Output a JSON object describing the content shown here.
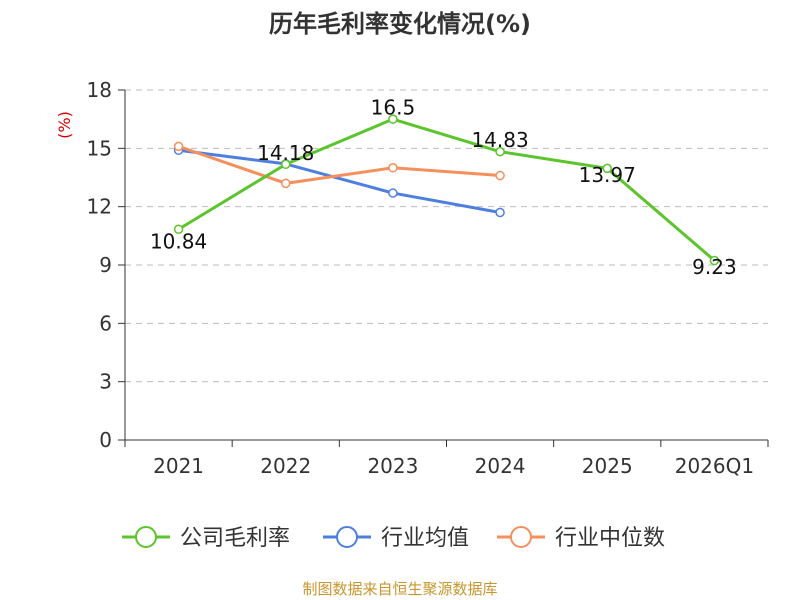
{
  "chart_data": {
    "type": "line",
    "title": "历年毛利率变化情况(%)",
    "y_unit": "(%)",
    "categories": [
      "2021",
      "2022",
      "2023",
      "2024",
      "2025",
      "2026Q1"
    ],
    "ylim": [
      0,
      18
    ],
    "y_ticks": [
      "0",
      "3",
      "6",
      "9",
      "12",
      "15",
      "18"
    ],
    "grid": true,
    "legend_position": "bottom",
    "series": [
      {
        "name": "公司毛利率",
        "color": "#5cc42c",
        "values": [
          10.84,
          14.18,
          16.5,
          14.83,
          13.97,
          9.23
        ],
        "labels": [
          "10.84",
          "14.18",
          "16.5",
          "14.83",
          "13.97",
          "9.23"
        ]
      },
      {
        "name": "行业均值",
        "color": "#4f7fde",
        "values": [
          14.9,
          14.2,
          12.7,
          11.7,
          null,
          null
        ]
      },
      {
        "name": "行业中位数",
        "color": "#f58f5c",
        "values": [
          15.1,
          13.2,
          14.0,
          13.6,
          null,
          null
        ]
      }
    ]
  },
  "source": "制图数据来自恒生聚源数据库"
}
